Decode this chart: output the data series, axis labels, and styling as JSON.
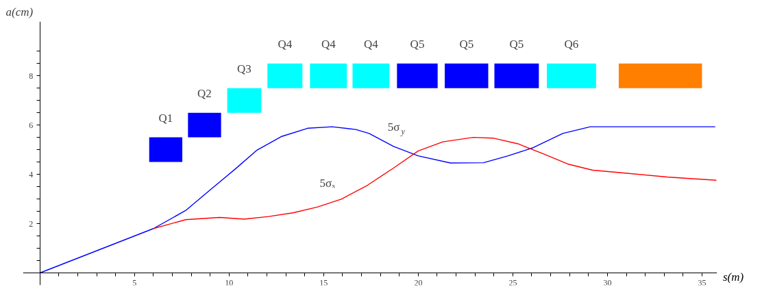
{
  "chart_data": {
    "type": "line",
    "xlabel": "s(m)",
    "ylabel": "a(cm)",
    "xlim": [
      -0.9,
      35.8
    ],
    "ylim": [
      -0.5,
      10.2
    ],
    "xticks": [
      {
        "value": 1,
        "label": null
      },
      {
        "value": 2,
        "label": null
      },
      {
        "value": 3,
        "label": null
      },
      {
        "value": 4,
        "label": null
      },
      5,
      {
        "value": 6,
        "label": null
      },
      {
        "value": 7,
        "label": null
      },
      {
        "value": 8,
        "label": null
      },
      {
        "value": 9,
        "label": null
      },
      10,
      {
        "value": 11,
        "label": null
      },
      {
        "value": 12,
        "label": null
      },
      {
        "value": 13,
        "label": null
      },
      {
        "value": 14,
        "label": null
      },
      15,
      {
        "value": 16,
        "label": null
      },
      {
        "value": 17,
        "label": null
      },
      {
        "value": 18,
        "label": null
      },
      {
        "value": 19,
        "label": null
      },
      20,
      {
        "value": 21,
        "label": null
      },
      {
        "value": 22,
        "label": null
      },
      {
        "value": 23,
        "label": null
      },
      {
        "value": 24,
        "label": null
      },
      25,
      {
        "value": 26,
        "label": null
      },
      {
        "value": 27,
        "label": null
      },
      {
        "value": 28,
        "label": null
      },
      {
        "value": 29,
        "label": null
      },
      30,
      {
        "value": 31,
        "label": null
      },
      {
        "value": 32,
        "label": null
      },
      {
        "value": 33,
        "label": null
      },
      {
        "value": 34,
        "label": null
      },
      35
    ],
    "yticks": [
      {
        "value": 0.5,
        "label": null
      },
      {
        "value": 1,
        "label": null
      },
      {
        "value": 1.5,
        "label": null
      },
      2,
      {
        "value": 2.5,
        "label": null
      },
      {
        "value": 3,
        "label": null
      },
      {
        "value": 3.5,
        "label": null
      },
      4,
      {
        "value": 4.5,
        "label": null
      },
      {
        "value": 5,
        "label": null
      },
      {
        "value": 5.5,
        "label": null
      },
      6,
      {
        "value": 6.5,
        "label": null
      },
      {
        "value": 7,
        "label": null
      },
      {
        "value": 7.5,
        "label": null
      },
      8,
      {
        "value": 8.5,
        "label": null
      },
      {
        "value": 9,
        "label": null
      }
    ],
    "grid": false,
    "line_style": "solid",
    "marker": "none",
    "series": [
      {
        "color": "#0000ff",
        "x": [
          0,
          6,
          7.7,
          9.0,
          10.3,
          11.45,
          12.75,
          14.15,
          15.45,
          16.7,
          17.4,
          18.7,
          20.0,
          21.7,
          23.45,
          24.74,
          26.07,
          27.64,
          29.09,
          30.5,
          35.7
        ],
        "values": [
          0,
          1.8,
          2.53,
          3.37,
          4.2,
          4.97,
          5.53,
          5.87,
          5.93,
          5.82,
          5.66,
          5.13,
          4.75,
          4.46,
          4.47,
          4.75,
          5.08,
          5.66,
          5.93,
          5.93,
          5.93
        ]
      },
      {
        "color": "#ff0000",
        "x": [
          6,
          7.7,
          9.5,
          10.8,
          12.1,
          13.38,
          14.66,
          15.95,
          17.3,
          18.7,
          20.0,
          21.3,
          22.9,
          23.96,
          25.27,
          26.59,
          27.9,
          29.22,
          30.54,
          33.17,
          35.76
        ],
        "values": [
          1.8,
          2.16,
          2.25,
          2.18,
          2.29,
          2.44,
          2.67,
          3.0,
          3.55,
          4.26,
          4.95,
          5.32,
          5.5,
          5.47,
          5.24,
          4.84,
          4.42,
          4.17,
          4.08,
          3.89,
          3.76
        ]
      },
      {
        "type": "bar",
        "x": [
          6.65,
          8.7,
          10.8,
          12.95,
          15.25,
          17.5,
          19.95,
          22.55,
          25.2,
          28.1,
          32.8
        ],
        "values": [
          1,
          1,
          1,
          1,
          1,
          1,
          1,
          1,
          1,
          1,
          1
        ],
        "base": [
          4.5,
          5.5,
          6.5,
          7.5,
          7.5,
          7.5,
          7.5,
          7.5,
          7.5,
          7.5,
          7.5
        ],
        "colors": [
          "#0000ff",
          "#0000ff",
          "#00ffff",
          "#00ffff",
          "#00ffff",
          "#00ffff",
          "#0000ff",
          "#0000ff",
          "#0000ff",
          "#00ffff",
          "#ff7f00"
        ]
      }
    ],
    "annotations": [
      {
        "text": "Q1",
        "x": 6.65,
        "y": 5.5
      },
      {
        "text": "Q2",
        "x": 8.7,
        "y": 6.5
      },
      {
        "text": "Q3",
        "x": 10.8,
        "y": 7.5
      },
      {
        "text": "Q4",
        "x": 12.95,
        "y": 8.5
      },
      {
        "text": "Q4",
        "x": 15.25,
        "y": 8.5
      },
      {
        "text": "Q4",
        "x": 17.5,
        "y": 8.5
      },
      {
        "text": "Q5",
        "x": 19.95,
        "y": 8.5
      },
      {
        "text": "Q5",
        "x": 22.55,
        "y": 8.5
      },
      {
        "text": "Q5",
        "x": 25.2,
        "y": 8.5
      },
      {
        "text": "Q6",
        "x": 28.1,
        "y": 8.5
      },
      {
        "text": "5σ$_{y}$",
        "x": 18.7,
        "y": 5.13
      },
      {
        "text": "5σₓ",
        "x": 15.2,
        "y": 2.85
      }
    ]
  }
}
